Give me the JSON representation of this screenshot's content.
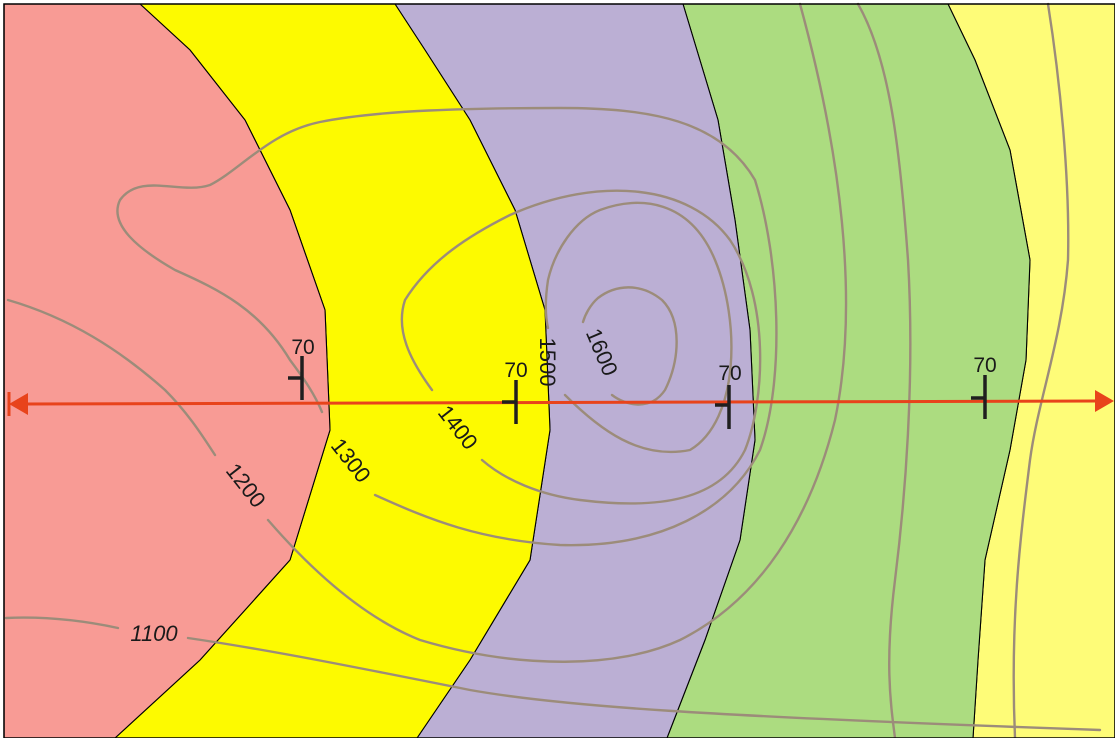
{
  "colors": {
    "unit_1": "#f89b95",
    "unit_2": "#fdfa00",
    "unit_3": "#bbafd4",
    "unit_4": "#acdc80",
    "unit_5": "#fefc78",
    "contour": "#9c8c7a",
    "section_line": "#e8431b",
    "symbol": "#1f1f1f"
  },
  "contours": {
    "labels": [
      {
        "id": "c1100",
        "text": "1100"
      },
      {
        "id": "c1200",
        "text": "1200"
      },
      {
        "id": "c1300",
        "text": "1300"
      },
      {
        "id": "c1400",
        "text": "1400"
      },
      {
        "id": "c1500",
        "text": "1500"
      },
      {
        "id": "c1600",
        "text": "1600"
      }
    ]
  },
  "dip_symbols": [
    {
      "id": "dip1",
      "dip": "70"
    },
    {
      "id": "dip2",
      "dip": "70"
    },
    {
      "id": "dip3",
      "dip": "70"
    },
    {
      "id": "dip4",
      "dip": "70"
    }
  ],
  "section_line": {
    "ends": [
      "arrow-left",
      "arrow-right"
    ]
  }
}
